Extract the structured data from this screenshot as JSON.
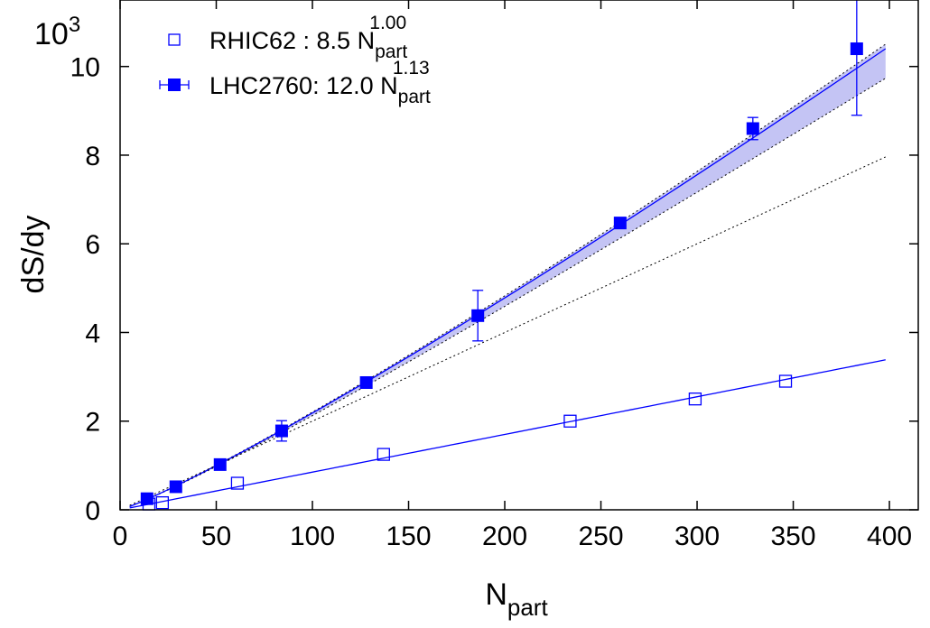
{
  "chart_data": {
    "type": "scatter",
    "xlabel": "N",
    "xlabel_sub": "part",
    "ylabel": "dS/dy",
    "y_multiplier": "10",
    "y_multiplier_exp": "3",
    "xlim": [
      0,
      415
    ],
    "ylim": [
      0,
      11.5
    ],
    "x_ticks": [
      "0",
      "50",
      "100",
      "150",
      "200",
      "250",
      "300",
      "350",
      "400"
    ],
    "y_ticks": [
      "0",
      "2",
      "4",
      "6",
      "8",
      "10"
    ],
    "grid": false,
    "legend_position": "top-left",
    "series": [
      {
        "name": "RHIC62",
        "legend_label": "RHIC62  : 8.5 N",
        "legend_sub": "part",
        "legend_exp": "1.00",
        "marker": "open-square",
        "color": "#0000ff",
        "points": [
          {
            "x": 15,
            "y": 0.13
          },
          {
            "x": 22,
            "y": 0.16
          },
          {
            "x": 61,
            "y": 0.6
          },
          {
            "x": 137,
            "y": 1.25
          },
          {
            "x": 234,
            "y": 2.0
          },
          {
            "x": 299,
            "y": 2.5
          },
          {
            "x": 346,
            "y": 2.9
          }
        ],
        "fit": {
          "coef": 8.5,
          "exponent": 1.0,
          "scale": 0.001,
          "x_range": [
            5,
            398
          ]
        }
      },
      {
        "name": "LHC2760",
        "legend_label": "LHC2760: 12.0 N",
        "legend_sub": "part",
        "legend_exp": "1.13",
        "marker": "filled-square",
        "color": "#0000ff",
        "points": [
          {
            "x": 14,
            "y": 0.25,
            "err": 0.05
          },
          {
            "x": 29,
            "y": 0.52,
            "err": 0.05
          },
          {
            "x": 52,
            "y": 1.02,
            "err": 0.07
          },
          {
            "x": 84,
            "y": 1.78,
            "err": 0.23
          },
          {
            "x": 128,
            "y": 2.87,
            "err": 0.08
          },
          {
            "x": 186,
            "y": 4.38,
            "err": 0.57
          },
          {
            "x": 260,
            "y": 6.47,
            "err": 0.12
          },
          {
            "x": 329,
            "y": 8.6,
            "err": 0.25
          },
          {
            "x": 383,
            "y": 10.4,
            "err": 1.5
          }
        ],
        "fit": {
          "coef": 12.0,
          "exponent": 1.13,
          "scale": 0.001,
          "x_range": [
            5,
            398
          ]
        }
      }
    ],
    "band_color": "#c4c4f4",
    "reference_line": {
      "slope": 0.02,
      "x_range": [
        5,
        398
      ]
    }
  }
}
